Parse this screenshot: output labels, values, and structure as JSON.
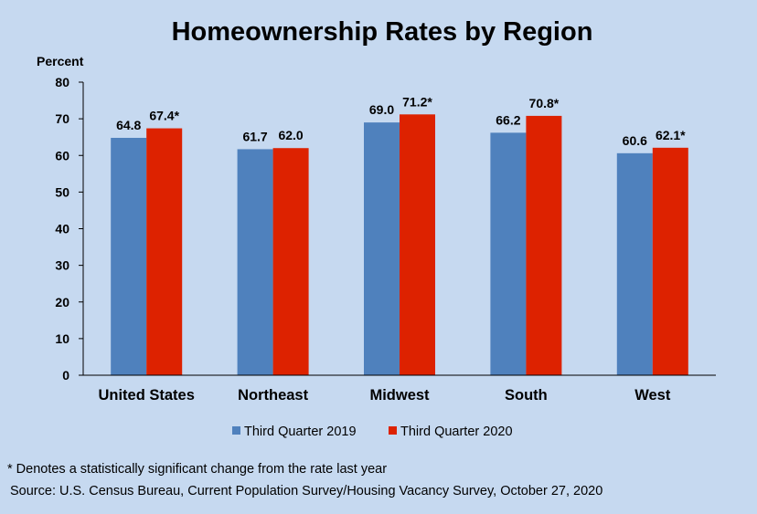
{
  "chart_data": {
    "type": "bar",
    "title": "Homeownership Rates by Region",
    "ylabel": "Percent",
    "xlabel": "",
    "ylim": [
      0,
      80
    ],
    "yticks": [
      "0",
      "10",
      "20",
      "30",
      "40",
      "50",
      "60",
      "70",
      "80"
    ],
    "categories": [
      "United States",
      "Northeast",
      "Midwest",
      "South",
      "West"
    ],
    "series": [
      {
        "name": "Third Quarter 2019",
        "color": "#4f81bd",
        "values": [
          64.8,
          61.7,
          69.0,
          66.2,
          60.6
        ],
        "labels": [
          "64.8",
          "61.7",
          "69.0",
          "66.2",
          "60.6"
        ]
      },
      {
        "name": "Third Quarter 2020",
        "color": "#dd2200",
        "values": [
          67.4,
          62.0,
          71.2,
          70.8,
          62.1
        ],
        "labels": [
          "67.4*",
          "62.0",
          "71.2*",
          "70.8*",
          "62.1*"
        ]
      }
    ],
    "grid": false,
    "legend_position": "bottom"
  },
  "footnotes": {
    "significance": "* Denotes a statistically significant change from the rate last year",
    "source": "Source: U.S. Census Bureau, Current Population Survey/Housing Vacancy Survey, October 27, 2020"
  }
}
